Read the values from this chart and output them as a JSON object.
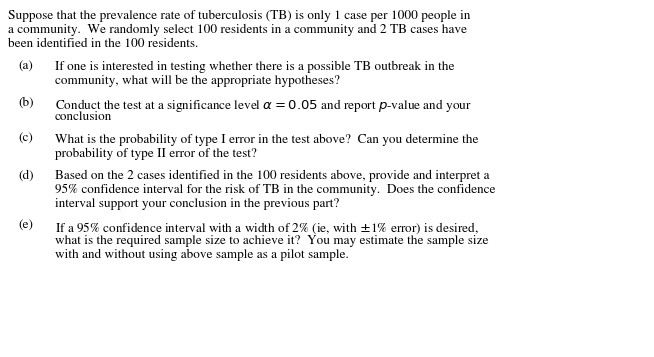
{
  "background_color": "#ffffff",
  "figsize": [
    6.54,
    3.57
  ],
  "dpi": 100,
  "font_size": 9.5,
  "font_family": "STIXGeneral",
  "text_color": "#000000",
  "intro_lines": [
    "Suppose that the prevalence rate of tuberculosis (TB) is only 1 case per 1000 people in",
    "a community.  We randomly select 100 residents in a community and 2 TB cases have",
    "been identified in the 100 residents."
  ],
  "items": [
    {
      "label": "(a)",
      "lines": [
        "If one is interested in testing whether there is a possible TB outbreak in the",
        "community, what will be the appropriate hypotheses?"
      ]
    },
    {
      "label": "(b)",
      "lines": [
        "Conduct the test at a significance level $\\alpha = 0.05$ and report $p$-value and your",
        "conclusion"
      ]
    },
    {
      "label": "(c)",
      "lines": [
        "What is the probability of type I error in the test above?  Can you determine the",
        "probability of type II error of the test?"
      ]
    },
    {
      "label": "(d)",
      "lines": [
        "Based on the 2 cases identified in the 100 residents above, provide and interpret a",
        "95% confidence interval for the risk of TB in the community.  Does the confidence",
        "interval support your conclusion in the previous part?"
      ]
    },
    {
      "label": "(e)",
      "lines": [
        "If a 95% confidence interval with a width of 2% (ie, with $\\pm$1% error) is desired,",
        "what is the required sample size to achieve it?  You may estimate the sample size",
        "with and without using above sample as a pilot sample."
      ]
    }
  ]
}
